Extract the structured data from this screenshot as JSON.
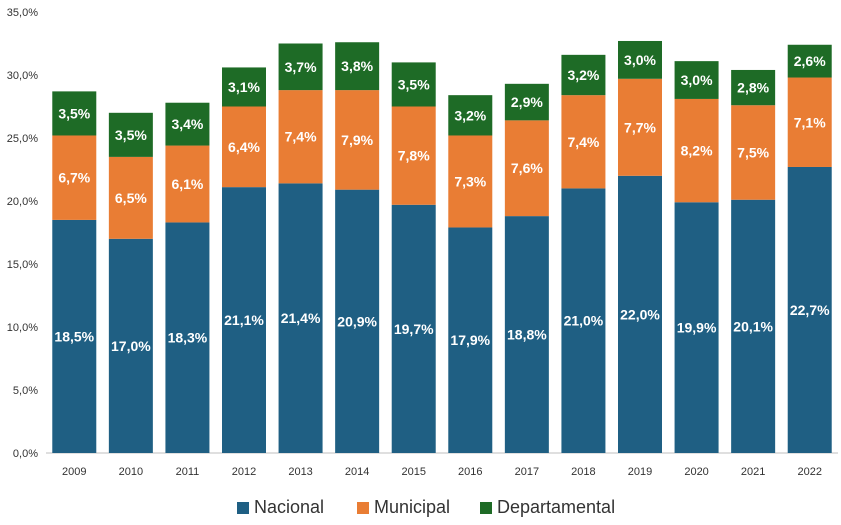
{
  "chart_data": {
    "type": "bar",
    "stacked": true,
    "categories": [
      "2009",
      "2010",
      "2011",
      "2012",
      "2013",
      "2014",
      "2015",
      "2016",
      "2017",
      "2018",
      "2019",
      "2020",
      "2021",
      "2022"
    ],
    "series": [
      {
        "name": "Nacional",
        "color": "#1f5f83",
        "values": [
          18.5,
          17.0,
          18.3,
          21.1,
          21.4,
          20.9,
          19.7,
          17.9,
          18.8,
          21.0,
          22.0,
          19.9,
          20.1,
          22.7
        ],
        "labels": [
          "18,5%",
          "17,0%",
          "18,3%",
          "21,1%",
          "21,4%",
          "20,9%",
          "19,7%",
          "17,9%",
          "18,8%",
          "21,0%",
          "22,0%",
          "19,9%",
          "20,1%",
          "22,7%"
        ]
      },
      {
        "name": "Municipal",
        "color": "#e97d34",
        "values": [
          6.7,
          6.5,
          6.1,
          6.4,
          7.4,
          7.9,
          7.8,
          7.3,
          7.6,
          7.4,
          7.7,
          8.2,
          7.5,
          7.1
        ],
        "labels": [
          "6,7%",
          "6,5%",
          "6,1%",
          "6,4%",
          "7,4%",
          "7,9%",
          "7,8%",
          "7,3%",
          "7,6%",
          "7,4%",
          "7,7%",
          "8,2%",
          "7,5%",
          "7,1%"
        ]
      },
      {
        "name": "Departamental",
        "color": "#1e6b26",
        "values": [
          3.5,
          3.5,
          3.4,
          3.1,
          3.7,
          3.8,
          3.5,
          3.2,
          2.9,
          3.2,
          3.0,
          3.0,
          2.8,
          2.6
        ],
        "labels": [
          "3,5%",
          "3,5%",
          "3,4%",
          "3,1%",
          "3,7%",
          "3,8%",
          "3,5%",
          "3,2%",
          "2,9%",
          "3,2%",
          "3,0%",
          "3,0%",
          "2,8%",
          "2,6%"
        ]
      }
    ],
    "ylim": [
      0,
      35
    ],
    "yticks": [
      0,
      5,
      10,
      15,
      20,
      25,
      30,
      35
    ],
    "ytick_labels": [
      "0,0%",
      "5,0%",
      "10,0%",
      "15,0%",
      "20,0%",
      "25,0%",
      "30,0%",
      "35,0%"
    ],
    "grid": false,
    "legend": "bottom"
  }
}
